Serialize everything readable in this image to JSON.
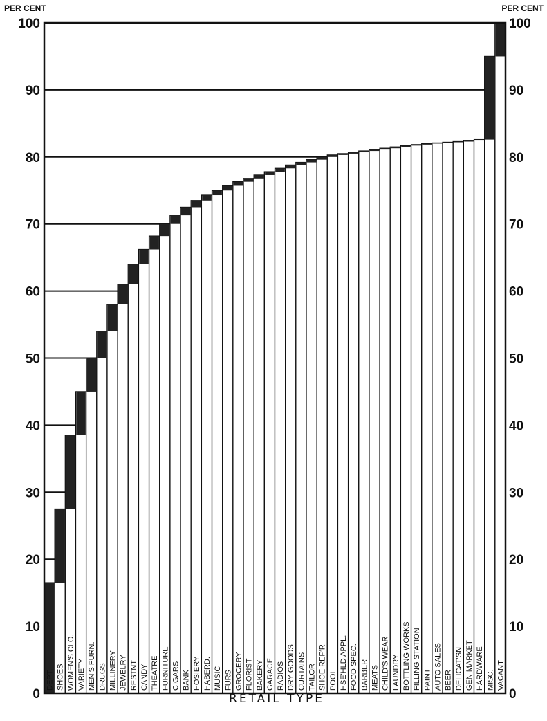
{
  "chart_data": {
    "type": "bar",
    "subtype": "cumulative-waterfall",
    "ylabel_left": "PER CENT",
    "ylabel_right": "PER CENT",
    "xlabel": "RETAIL TYPE",
    "ylim": [
      0,
      100
    ],
    "yticks": [
      "0",
      "10",
      "20",
      "30",
      "40",
      "50",
      "60",
      "70",
      "80",
      "90",
      "100"
    ],
    "grid": "horizontal",
    "bar_color": "#ffffff",
    "segment_color": "#222222",
    "categories": [
      "DEPT.",
      "SHOES",
      "WOMEN'S CLO.",
      "VARIETY",
      "MEN'S FURN.",
      "DRUGS",
      "MILLINERY",
      "JEWELRY",
      "RESTNT",
      "CANDY",
      "THEATRE",
      "FURNITURE",
      "CIGARS",
      "BANK",
      "HOSIERY",
      "HABERD.",
      "MUSIC",
      "FURS",
      "GROCERY",
      "FLORIST",
      "BAKERY",
      "GARAGE",
      "RADIOS",
      "DRY GOODS",
      "CURTAINS",
      "TAILOR",
      "SHOE REP'R",
      "POOL",
      "HSE'HLD APPL.",
      "FOOD SPEC.",
      "BARBER",
      "MEATS",
      "CHILD'S WEAR",
      "LAUNDRY",
      "BOTTLING WORKS",
      "FILLING STATION",
      "PAINT",
      "AUTO SALES",
      "BEER",
      "DELICAT'SN",
      "GEN MARKET",
      "HARDWARE",
      "MISC.",
      "VACANT"
    ],
    "cumulative": [
      16.5,
      27.5,
      38.5,
      45.0,
      50.0,
      54.0,
      58.0,
      61.0,
      64.0,
      66.2,
      68.2,
      70.0,
      71.3,
      72.5,
      73.5,
      74.3,
      75.0,
      75.7,
      76.3,
      76.8,
      77.3,
      77.8,
      78.3,
      78.8,
      79.2,
      79.6,
      80.0,
      80.3,
      80.5,
      80.7,
      80.9,
      81.1,
      81.3,
      81.5,
      81.7,
      81.85,
      82.0,
      82.1,
      82.2,
      82.3,
      82.45,
      82.6,
      95.0,
      100.0
    ]
  }
}
